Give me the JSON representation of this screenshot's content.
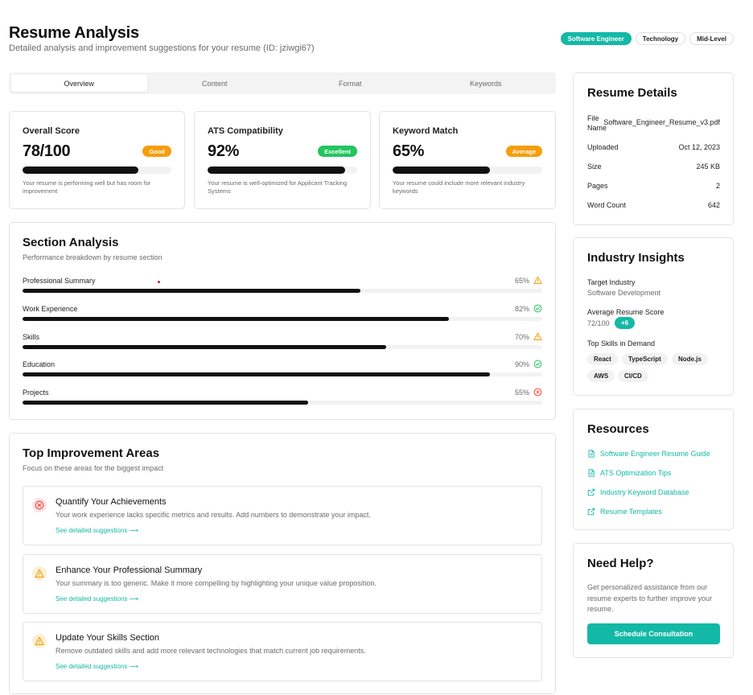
{
  "header": {
    "title": "Resume Analysis",
    "subtitle": "Detailed analysis and improvement suggestions for your resume (ID: jziwgi67)",
    "tags": [
      "Software Engineer",
      "Technology",
      "Mid-Level"
    ]
  },
  "tabs": [
    "Overview",
    "Content",
    "Format",
    "Keywords"
  ],
  "scores": [
    {
      "title": "Overall Score",
      "value": "78/100",
      "badge": "Good",
      "badge_color": "#f59e0b",
      "progress": 0.78,
      "desc": "Your resume is performing well but has room for improvement"
    },
    {
      "title": "ATS Compatibility",
      "value": "92%",
      "badge": "Excellent",
      "badge_color": "#22c55e",
      "progress": 0.92,
      "desc": "Your resume is well-optimized for Applicant Tracking Systems"
    },
    {
      "title": "Keyword Match",
      "value": "65%",
      "badge": "Average",
      "badge_color": "#f59e0b",
      "progress": 0.65,
      "desc": "Your resume could include more relevant industry keywords"
    }
  ],
  "section_analysis": {
    "title": "Section Analysis",
    "subtitle": "Performance breakdown by resume section",
    "rows": [
      {
        "label": "Professional Summary",
        "pct": "65%",
        "progress": 0.65,
        "icon": "warning-icon"
      },
      {
        "label": "Work Experience",
        "pct": "82%",
        "progress": 0.82,
        "icon": "check-circle-icon"
      },
      {
        "label": "Skills",
        "pct": "70%",
        "progress": 0.7,
        "icon": "warning-icon"
      },
      {
        "label": "Education",
        "pct": "90%",
        "progress": 0.9,
        "icon": "check-circle-icon"
      },
      {
        "label": "Projects",
        "pct": "55%",
        "progress": 0.55,
        "icon": "x-circle-icon"
      }
    ]
  },
  "improvements": {
    "title": "Top Improvement Areas",
    "subtitle": "Focus on these areas for the biggest impact",
    "items": [
      {
        "title": "Quantify Your Achievements",
        "desc": "Your work experience lacks specific metrics and results. Add numbers to demonstrate your impact.",
        "link": "See detailed suggestions",
        "icon": "x-circle-icon"
      },
      {
        "title": "Enhance Your Professional Summary",
        "desc": "Your summary is too generic. Make it more compelling by highlighting your unique value proposition.",
        "link": "See detailed suggestions",
        "icon": "warning-icon"
      },
      {
        "title": "Update Your Skills Section",
        "desc": "Remove outdated skills and add more relevant technologies that match current job requirements.",
        "link": "See detailed suggestions",
        "icon": "warning-icon"
      }
    ]
  },
  "resume_details": {
    "title": "Resume Details",
    "file_label_1": "File",
    "file_label_2": "Name",
    "file_value": "Software_Engineer_Resume_v3.pdf",
    "rows": [
      {
        "k": "Uploaded",
        "v": "Oct 12, 2023"
      },
      {
        "k": "Size",
        "v": "245 KB"
      },
      {
        "k": "Pages",
        "v": "2"
      },
      {
        "k": "Word Count",
        "v": "642"
      }
    ]
  },
  "industry": {
    "title": "Industry Insights",
    "target_label": "Target Industry",
    "target_value": "Software Development",
    "avg_label": "Average Resume Score",
    "avg_value": "72/100",
    "avg_delta": "+6",
    "skills_label": "Top Skills in Demand",
    "skills": [
      "React",
      "TypeScript",
      "Node.js",
      "AWS",
      "CI/CD"
    ]
  },
  "resources": {
    "title": "Resources",
    "links": [
      {
        "label": "Software Engineer Resume Guide",
        "icon": "document-icon"
      },
      {
        "label": "ATS Optimization Tips",
        "icon": "document-icon"
      },
      {
        "label": "Industry Keyword Database",
        "icon": "external-link-icon"
      },
      {
        "label": "Resume Templates",
        "icon": "external-link-icon"
      }
    ]
  },
  "help": {
    "title": "Need Help?",
    "desc": "Get personalized assistance from our resume experts to further improve your resume.",
    "button": "Schedule Consultation"
  },
  "colors": {
    "accent": "#14b8a6",
    "warning": "#f59e0b",
    "success": "#22c55e",
    "danger": "#ef4444"
  }
}
